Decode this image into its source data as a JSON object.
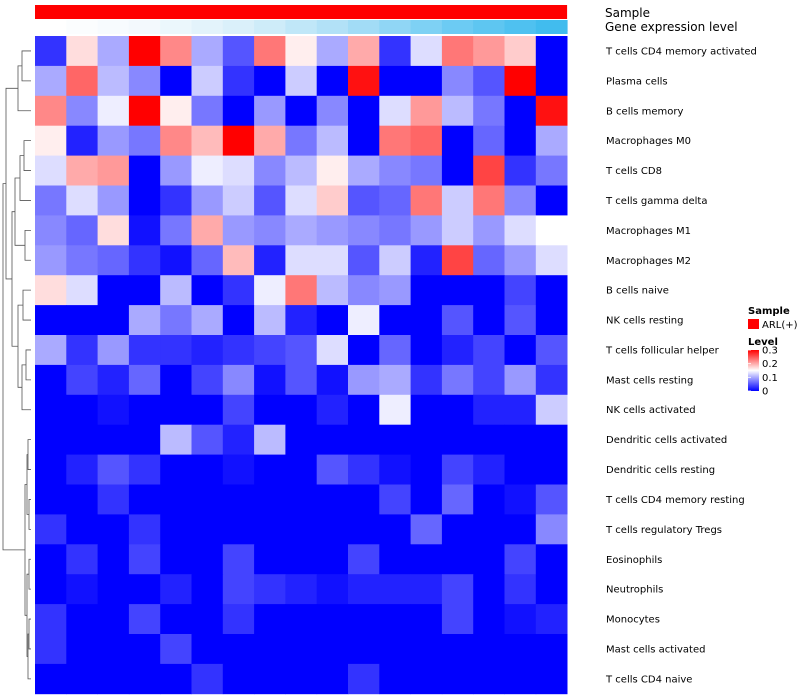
{
  "chart_data": {
    "type": "heatmap",
    "title": "",
    "annotation_rows": [
      "Sample",
      "Gene expression level"
    ],
    "sample_annotation_color": "#FF0000",
    "expression_gradient": [
      "#FFFFFF",
      "#F2F9FD",
      "#D7EFFA",
      "#A9DEF6",
      "#6FCCF3",
      "#41BCEE"
    ],
    "row_labels": [
      "T cells CD4 memory activated",
      "Plasma cells",
      "B cells memory",
      "Macrophages M0",
      "T cells CD8",
      "T cells gamma delta",
      "Macrophages M1",
      "Macrophages M2",
      "B cells naive",
      "NK cells resting",
      "T cells follicular helper",
      "Mast cells resting",
      "NK cells activated",
      "Dendritic cells activated",
      "Dendritic cells resting",
      "T cells CD4 memory resting",
      "T cells regulatory  Tregs",
      "Eosinophils",
      "Neutrophils",
      "Monocytes",
      "Mast cells activated",
      "T cells CD4 naive"
    ],
    "n_columns": 17,
    "values": [
      [
        0.03,
        0.17,
        0.1,
        0.3,
        0.22,
        0.1,
        0.05,
        0.23,
        0.16,
        0.1,
        0.2,
        0.03,
        0.13,
        0.23,
        0.21,
        0.18,
        0.0
      ],
      [
        0.1,
        0.24,
        0.11,
        0.08,
        0.0,
        0.12,
        0.03,
        0.0,
        0.12,
        0.0,
        0.29,
        0.0,
        0.0,
        0.08,
        0.05,
        0.3,
        0.0
      ],
      [
        0.22,
        0.08,
        0.14,
        0.3,
        0.16,
        0.07,
        0.0,
        0.09,
        0.0,
        0.08,
        0.0,
        0.13,
        0.21,
        0.11,
        0.07,
        0.0,
        0.29
      ],
      [
        0.16,
        0.02,
        0.09,
        0.07,
        0.22,
        0.19,
        0.3,
        0.2,
        0.07,
        0.11,
        0.0,
        0.23,
        0.24,
        0.0,
        0.06,
        0.0,
        0.1
      ],
      [
        0.13,
        0.2,
        0.21,
        0.0,
        0.09,
        0.14,
        0.13,
        0.08,
        0.11,
        0.16,
        0.1,
        0.08,
        0.07,
        0.0,
        0.26,
        0.03,
        0.07
      ],
      [
        0.07,
        0.13,
        0.09,
        0.0,
        0.03,
        0.09,
        0.12,
        0.05,
        0.13,
        0.18,
        0.05,
        0.06,
        0.23,
        0.12,
        0.23,
        0.08,
        0.0
      ],
      [
        0.08,
        0.06,
        0.17,
        0.01,
        0.07,
        0.2,
        0.09,
        0.08,
        0.1,
        0.09,
        0.08,
        0.07,
        0.09,
        0.12,
        0.09,
        0.13,
        0.15
      ],
      [
        0.09,
        0.07,
        0.06,
        0.03,
        0.01,
        0.06,
        0.19,
        0.02,
        0.13,
        0.13,
        0.05,
        0.12,
        0.02,
        0.26,
        0.06,
        0.09,
        0.13
      ],
      [
        0.17,
        0.13,
        0.0,
        0.0,
        0.11,
        0.0,
        0.03,
        0.14,
        0.23,
        0.11,
        0.08,
        0.09,
        0.0,
        0.0,
        0.0,
        0.04,
        0.0
      ],
      [
        0.0,
        0.0,
        0.0,
        0.1,
        0.07,
        0.1,
        0.0,
        0.11,
        0.02,
        0.0,
        0.14,
        0.0,
        0.0,
        0.05,
        0.0,
        0.05,
        0.0
      ],
      [
        0.1,
        0.03,
        0.09,
        0.03,
        0.03,
        0.02,
        0.03,
        0.04,
        0.05,
        0.13,
        0.0,
        0.06,
        0.0,
        0.02,
        0.04,
        0.0,
        0.05
      ],
      [
        0.0,
        0.04,
        0.02,
        0.06,
        0.0,
        0.04,
        0.08,
        0.01,
        0.05,
        0.01,
        0.09,
        0.1,
        0.03,
        0.07,
        0.04,
        0.09,
        0.03
      ],
      [
        0.0,
        0.0,
        0.01,
        0.0,
        0.0,
        0.0,
        0.04,
        0.0,
        0.0,
        0.02,
        0.0,
        0.14,
        0.0,
        0.0,
        0.02,
        0.02,
        0.12
      ],
      [
        0.0,
        0.0,
        0.0,
        0.0,
        0.11,
        0.05,
        0.02,
        0.11,
        0.0,
        0.0,
        0.0,
        0.0,
        0.0,
        0.0,
        0.0,
        0.0,
        0.0
      ],
      [
        0.0,
        0.02,
        0.05,
        0.03,
        0.0,
        0.0,
        0.01,
        0.0,
        0.0,
        0.05,
        0.03,
        0.01,
        0.0,
        0.04,
        0.02,
        0.0,
        0.0
      ],
      [
        0.0,
        0.0,
        0.03,
        0.0,
        0.0,
        0.0,
        0.0,
        0.0,
        0.0,
        0.0,
        0.0,
        0.04,
        0.0,
        0.06,
        0.0,
        0.01,
        0.05
      ],
      [
        0.03,
        0.0,
        0.0,
        0.03,
        0.0,
        0.0,
        0.0,
        0.0,
        0.0,
        0.0,
        0.0,
        0.0,
        0.06,
        0.0,
        0.0,
        0.0,
        0.08
      ],
      [
        0.0,
        0.03,
        0.0,
        0.04,
        0.0,
        0.0,
        0.04,
        0.0,
        0.0,
        0.0,
        0.04,
        0.0,
        0.0,
        0.0,
        0.0,
        0.04,
        0.0
      ],
      [
        0.0,
        0.01,
        0.0,
        0.0,
        0.02,
        0.0,
        0.04,
        0.03,
        0.02,
        0.01,
        0.02,
        0.02,
        0.02,
        0.04,
        0.0,
        0.03,
        0.0
      ],
      [
        0.03,
        0.0,
        0.0,
        0.04,
        0.0,
        0.0,
        0.03,
        0.0,
        0.0,
        0.0,
        0.0,
        0.0,
        0.0,
        0.04,
        0.0,
        0.01,
        0.02
      ],
      [
        0.03,
        0.0,
        0.0,
        0.0,
        0.04,
        0.0,
        0.0,
        0.0,
        0.0,
        0.0,
        0.0,
        0.0,
        0.0,
        0.0,
        0.0,
        0.0,
        0.0
      ],
      [
        0.0,
        0.0,
        0.0,
        0.0,
        0.0,
        0.03,
        0.0,
        0.0,
        0.0,
        0.0,
        0.03,
        0.0,
        0.0,
        0.0,
        0.0,
        0.0,
        0.0
      ]
    ],
    "color_scale": {
      "min": 0,
      "mid": 0.15,
      "max": 0.3,
      "low": "#0000FF",
      "midcolor": "#FFFFFF",
      "high": "#FF0000"
    },
    "legend": {
      "sample_title": "Sample",
      "sample_entry": "ARL(+)",
      "level_title": "Level",
      "level_ticks": [
        "0.3",
        "0.2",
        "0.1",
        "0"
      ],
      "level_tick_values": [
        0.3,
        0.2,
        0.1,
        0
      ],
      "placement": "right"
    },
    "row_dendrogram": true,
    "xlabel": "",
    "ylabel": ""
  }
}
